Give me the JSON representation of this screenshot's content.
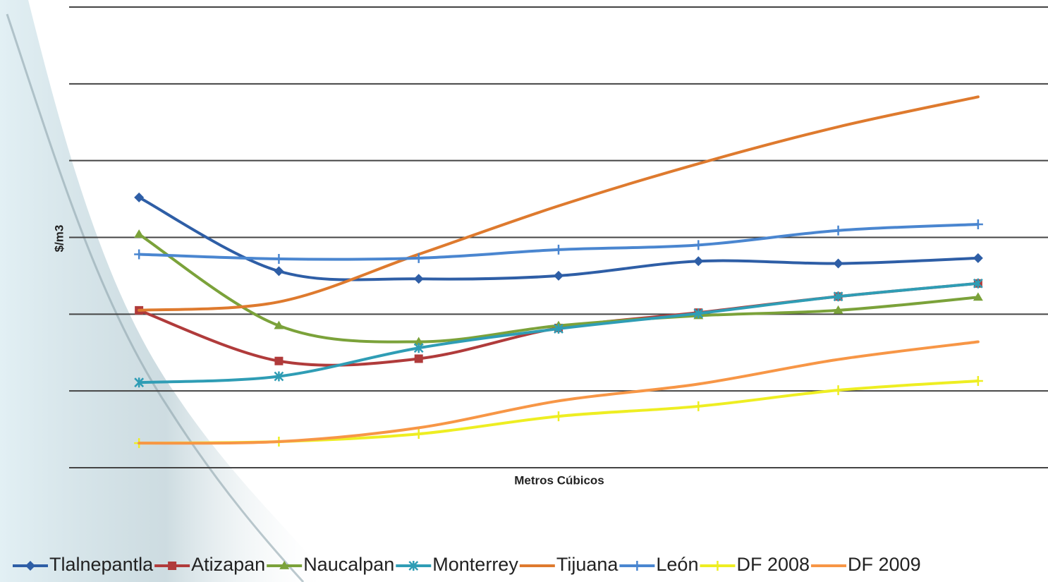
{
  "chart_data": {
    "type": "line",
    "y_label": "$/m3",
    "x_label": "Metros Cúbicos",
    "categories": [
      null,
      null,
      null,
      null,
      null,
      null,
      null
    ],
    "ylim": [
      0,
      6
    ],
    "yticks": [
      0,
      1,
      2,
      3,
      4,
      5,
      6
    ],
    "grid": true,
    "legend": "bottom",
    "series": [
      {
        "name": "Tlalnepantla",
        "color": "#2e5ea6",
        "marker": "diamond",
        "values": [
          3.52,
          2.56,
          2.46,
          2.5,
          2.69,
          2.66,
          2.73
        ]
      },
      {
        "name": "Atizapan",
        "color": "#b03b3b",
        "marker": "square",
        "values": [
          2.05,
          1.39,
          1.42,
          1.82,
          2.02,
          2.23,
          2.4
        ]
      },
      {
        "name": "Naucalpan",
        "color": "#7ba23a",
        "marker": "triangle",
        "values": [
          3.04,
          1.85,
          1.64,
          1.85,
          1.98,
          2.05,
          2.22
        ]
      },
      {
        "name": "Monterrey",
        "color": "#2f9db5",
        "marker": "star",
        "values": [
          1.11,
          1.19,
          1.56,
          1.81,
          2.01,
          2.23,
          2.4
        ]
      },
      {
        "name": "Tijuana",
        "color": "#de7a2e",
        "marker": "none",
        "values": [
          2.05,
          2.16,
          2.78,
          3.41,
          3.96,
          4.44,
          4.83
        ]
      },
      {
        "name": "León",
        "color": "#4a86d0",
        "marker": "plus",
        "values": [
          2.78,
          2.72,
          2.73,
          2.84,
          2.9,
          3.09,
          3.17
        ]
      },
      {
        "name": "DF 2008",
        "color": "#eeee22",
        "marker": "plus",
        "values": [
          0.32,
          0.34,
          0.44,
          0.67,
          0.8,
          1.01,
          1.13
        ]
      },
      {
        "name": "DF 2009",
        "color": "#f79646",
        "marker": "none",
        "values": [
          0.32,
          0.34,
          0.52,
          0.87,
          1.09,
          1.41,
          1.64
        ]
      }
    ]
  }
}
